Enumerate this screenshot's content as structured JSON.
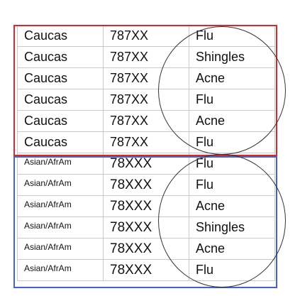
{
  "table": {
    "rows": [
      {
        "race": "Caucas",
        "zip": "787XX",
        "disease": "Flu",
        "group": "top"
      },
      {
        "race": "Caucas",
        "zip": "787XX",
        "disease": "Shingles",
        "group": "top"
      },
      {
        "race": "Caucas",
        "zip": "787XX",
        "disease": "Acne",
        "group": "top"
      },
      {
        "race": "Caucas",
        "zip": "787XX",
        "disease": "Flu",
        "group": "top"
      },
      {
        "race": "Caucas",
        "zip": "787XX",
        "disease": "Acne",
        "group": "top"
      },
      {
        "race": "Caucas",
        "zip": "787XX",
        "disease": "Flu",
        "group": "top"
      },
      {
        "race": "Asian/AfrAm",
        "zip": "78XXX",
        "disease": "Flu",
        "group": "bottom"
      },
      {
        "race": "Asian/AfrAm",
        "zip": "78XXX",
        "disease": "Flu",
        "group": "bottom"
      },
      {
        "race": "Asian/AfrAm",
        "zip": "78XXX",
        "disease": "Acne",
        "group": "bottom"
      },
      {
        "race": "Asian/AfrAm",
        "zip": "78XXX",
        "disease": "Shingles",
        "group": "bottom"
      },
      {
        "race": "Asian/AfrAm",
        "zip": "78XXX",
        "disease": "Acne",
        "group": "bottom"
      },
      {
        "race": "Asian/AfrAm",
        "zip": "78XXX",
        "disease": "Flu",
        "group": "bottom"
      }
    ]
  },
  "annotations": {
    "top_group_box_color": "#d42a2a",
    "bottom_group_box_color": "#4162cf",
    "circle_color": "#333333"
  }
}
